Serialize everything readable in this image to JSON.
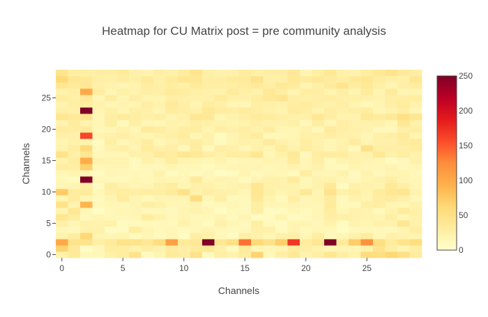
{
  "chart_data": {
    "type": "heatmap",
    "title": "Heatmap for CU Matrix post = pre community analysis",
    "xlabel": "Channels",
    "ylabel": "Channels",
    "x": [
      0,
      1,
      2,
      3,
      4,
      5,
      6,
      7,
      8,
      9,
      10,
      11,
      12,
      13,
      14,
      15,
      16,
      17,
      18,
      19,
      20,
      21,
      22,
      23,
      24,
      25,
      26,
      27,
      28,
      29
    ],
    "y": [
      0,
      1,
      2,
      3,
      4,
      5,
      6,
      7,
      8,
      9,
      10,
      11,
      12,
      13,
      14,
      15,
      16,
      17,
      18,
      19,
      20,
      21,
      22,
      23,
      24,
      25,
      26,
      27,
      28,
      29
    ],
    "xlim": [
      -0.5,
      29.5
    ],
    "ylim": [
      -0.5,
      29.5
    ],
    "x_ticks": [
      0,
      5,
      10,
      15,
      20,
      25
    ],
    "x_tick_labels": [
      "0",
      "5",
      "10",
      "15",
      "20",
      "25"
    ],
    "y_ticks": [
      0,
      5,
      10,
      15,
      20,
      25
    ],
    "y_tick_labels": [
      "0",
      "5",
      "10",
      "15",
      "20",
      "25"
    ],
    "colorscale": [
      [
        0,
        "#ffffcc"
      ],
      [
        0.12,
        "#ffeda0"
      ],
      [
        0.25,
        "#fed976"
      ],
      [
        0.37,
        "#feb24c"
      ],
      [
        0.5,
        "#fd8d3c"
      ],
      [
        0.62,
        "#fc4e2a"
      ],
      [
        0.75,
        "#e31a1c"
      ],
      [
        0.87,
        "#bd0026"
      ],
      [
        1,
        "#800026"
      ]
    ],
    "zmin": 0,
    "zmax": 250,
    "colorbar_ticks": [
      0,
      50,
      100,
      150,
      200,
      250
    ],
    "colorbar_tick_labels": [
      "0",
      "50",
      "100",
      "150",
      "200",
      "250"
    ],
    "grid": false,
    "z": [
      [
        22,
        35,
        12,
        14,
        24,
        30,
        46,
        8,
        17,
        35,
        28,
        48,
        10,
        26,
        22,
        30,
        66,
        14,
        27,
        36,
        21,
        27,
        41,
        28,
        21,
        56,
        53,
        63,
        49,
        31
      ],
      [
        67,
        35,
        5,
        13,
        30,
        30,
        22,
        26,
        21,
        31,
        26,
        34,
        37,
        23,
        9,
        34,
        15,
        15,
        19,
        31,
        26,
        22,
        16,
        17,
        15,
        23,
        45,
        27,
        17,
        26
      ],
      [
        100,
        47,
        45,
        26,
        34,
        46,
        46,
        39,
        54,
        108,
        35,
        37,
        250,
        39,
        51,
        139,
        60,
        48,
        70,
        170,
        32,
        41,
        250,
        34,
        72,
        120,
        53,
        32,
        45,
        55
      ],
      [
        22,
        29,
        62,
        18,
        16,
        19,
        10,
        15,
        10,
        15,
        7,
        28,
        23,
        13,
        8,
        26,
        21,
        15,
        24,
        26,
        15,
        30,
        11,
        16,
        23,
        31,
        14,
        24,
        20,
        19
      ],
      [
        14,
        11,
        24,
        23,
        7,
        8,
        29,
        18,
        12,
        15,
        10,
        13,
        19,
        14,
        11,
        13,
        25,
        24,
        8,
        18,
        12,
        16,
        14,
        7,
        12,
        13,
        12,
        11,
        18,
        29
      ],
      [
        25,
        16,
        23,
        20,
        24,
        9,
        10,
        12,
        12,
        12,
        22,
        14,
        8,
        23,
        15,
        11,
        27,
        10,
        9,
        18,
        17,
        13,
        21,
        9,
        20,
        18,
        24,
        21,
        41,
        21
      ],
      [
        42,
        30,
        12,
        17,
        13,
        13,
        15,
        29,
        21,
        13,
        18,
        12,
        14,
        18,
        10,
        18,
        7,
        8,
        19,
        8,
        10,
        16,
        26,
        25,
        21,
        20,
        17,
        27,
        16,
        24
      ],
      [
        17,
        40,
        15,
        5,
        13,
        16,
        17,
        13,
        14,
        11,
        17,
        22,
        16,
        7,
        12,
        11,
        27,
        9,
        8,
        15,
        10,
        16,
        30,
        15,
        21,
        20,
        12,
        21,
        33,
        24
      ],
      [
        47,
        20,
        90,
        12,
        15,
        13,
        17,
        27,
        23,
        15,
        16,
        20,
        10,
        12,
        16,
        11,
        27,
        16,
        15,
        18,
        15,
        16,
        33,
        12,
        11,
        26,
        28,
        17,
        15,
        22
      ],
      [
        19,
        31,
        17,
        10,
        17,
        31,
        18,
        12,
        17,
        18,
        17,
        54,
        14,
        27,
        11,
        11,
        37,
        20,
        10,
        28,
        14,
        19,
        31,
        11,
        21,
        19,
        29,
        31,
        24,
        14
      ],
      [
        73,
        31,
        34,
        14,
        25,
        30,
        28,
        30,
        27,
        33,
        48,
        21,
        26,
        23,
        22,
        16,
        40,
        25,
        19,
        21,
        37,
        18,
        45,
        24,
        27,
        20,
        32,
        40,
        42,
        20
      ],
      [
        16,
        17,
        28,
        9,
        29,
        21,
        16,
        17,
        25,
        30,
        17,
        24,
        24,
        15,
        20,
        21,
        40,
        24,
        22,
        21,
        15,
        21,
        37,
        8,
        23,
        21,
        19,
        36,
        26,
        15
      ],
      [
        12,
        9,
        250,
        15,
        12,
        11,
        16,
        14,
        18,
        16,
        15,
        34,
        15,
        20,
        17,
        10,
        18,
        23,
        21,
        32,
        14,
        20,
        21,
        16,
        11,
        19,
        21,
        27,
        17,
        16
      ],
      [
        16,
        19,
        16,
        9,
        16,
        13,
        13,
        12,
        22,
        8,
        14,
        10,
        13,
        6,
        8,
        19,
        10,
        16,
        14,
        10,
        29,
        16,
        15,
        21,
        10,
        20,
        12,
        18,
        19,
        12
      ],
      [
        29,
        28,
        69,
        14,
        15,
        15,
        10,
        12,
        11,
        17,
        14,
        14,
        10,
        14,
        17,
        17,
        18,
        14,
        15,
        20,
        16,
        22,
        12,
        10,
        19,
        16,
        15,
        20,
        12,
        15
      ],
      [
        21,
        30,
        97,
        21,
        20,
        20,
        10,
        24,
        18,
        30,
        19,
        18,
        14,
        20,
        12,
        15,
        16,
        20,
        18,
        33,
        16,
        28,
        10,
        20,
        21,
        18,
        16,
        8,
        11,
        24
      ],
      [
        47,
        25,
        40,
        13,
        15,
        15,
        23,
        24,
        35,
        30,
        40,
        38,
        28,
        24,
        30,
        30,
        40,
        14,
        24,
        37,
        12,
        29,
        31,
        29,
        21,
        23,
        37,
        23,
        29,
        21
      ],
      [
        21,
        30,
        58,
        12,
        22,
        25,
        18,
        32,
        23,
        28,
        13,
        30,
        12,
        28,
        23,
        15,
        24,
        19,
        32,
        22,
        30,
        23,
        15,
        24,
        12,
        48,
        27,
        28,
        26,
        32
      ],
      [
        17,
        23,
        20,
        9,
        27,
        16,
        20,
        29,
        14,
        20,
        25,
        29,
        21,
        10,
        19,
        23,
        21,
        33,
        22,
        18,
        29,
        22,
        15,
        20,
        31,
        17,
        24,
        23,
        31,
        33
      ],
      [
        23,
        23,
        160,
        20,
        23,
        26,
        20,
        17,
        22,
        25,
        30,
        15,
        24,
        8,
        18,
        25,
        31,
        12,
        14,
        15,
        24,
        24,
        27,
        24,
        21,
        15,
        24,
        26,
        33,
        19
      ],
      [
        31,
        29,
        34,
        14,
        16,
        21,
        15,
        34,
        29,
        21,
        28,
        30,
        18,
        27,
        24,
        29,
        21,
        30,
        18,
        16,
        22,
        13,
        33,
        26,
        23,
        20,
        12,
        12,
        25,
        28
      ],
      [
        20,
        32,
        20,
        16,
        29,
        12,
        26,
        15,
        14,
        21,
        20,
        26,
        24,
        22,
        18,
        22,
        26,
        21,
        21,
        25,
        13,
        29,
        16,
        27,
        21,
        22,
        23,
        15,
        40,
        24
      ],
      [
        42,
        35,
        45,
        16,
        26,
        33,
        28,
        23,
        27,
        19,
        23,
        40,
        36,
        15,
        21,
        27,
        33,
        31,
        26,
        23,
        24,
        39,
        28,
        20,
        20,
        37,
        31,
        38,
        49,
        42
      ],
      [
        25,
        23,
        250,
        18,
        25,
        17,
        25,
        24,
        18,
        31,
        27,
        24,
        38,
        32,
        28,
        31,
        28,
        24,
        19,
        33,
        29,
        19,
        29,
        23,
        26,
        30,
        15,
        20,
        28,
        16
      ],
      [
        20,
        27,
        29,
        22,
        16,
        20,
        19,
        28,
        20,
        35,
        26,
        18,
        30,
        25,
        16,
        16,
        27,
        25,
        21,
        28,
        31,
        25,
        23,
        28,
        19,
        14,
        18,
        28,
        32,
        22
      ],
      [
        30,
        25,
        38,
        16,
        29,
        17,
        26,
        19,
        19,
        28,
        25,
        24,
        24,
        34,
        24,
        24,
        30,
        36,
        43,
        26,
        25,
        26,
        30,
        25,
        25,
        23,
        20,
        28,
        27,
        30
      ],
      [
        22,
        25,
        100,
        30,
        16,
        25,
        20,
        26,
        25,
        34,
        30,
        25,
        23,
        22,
        33,
        25,
        21,
        38,
        28,
        19,
        29,
        28,
        19,
        26,
        19,
        32,
        19,
        33,
        17,
        18
      ],
      [
        40,
        34,
        39,
        24,
        22,
        16,
        20,
        29,
        25,
        29,
        25,
        34,
        27,
        27,
        28,
        31,
        35,
        27,
        37,
        32,
        18,
        25,
        33,
        43,
        29,
        37,
        25,
        18,
        26,
        30
      ],
      [
        60,
        39,
        37,
        26,
        25,
        29,
        25,
        35,
        24,
        33,
        41,
        40,
        28,
        28,
        33,
        33,
        46,
        25,
        25,
        38,
        33,
        36,
        31,
        27,
        37,
        39,
        32,
        25,
        23,
        41
      ],
      [
        44,
        27,
        27,
        28,
        26,
        34,
        24,
        20,
        27,
        23,
        31,
        43,
        25,
        21,
        24,
        32,
        25,
        27,
        27,
        36,
        18,
        27,
        37,
        24,
        21,
        30,
        37,
        45,
        34,
        28
      ]
    ]
  }
}
